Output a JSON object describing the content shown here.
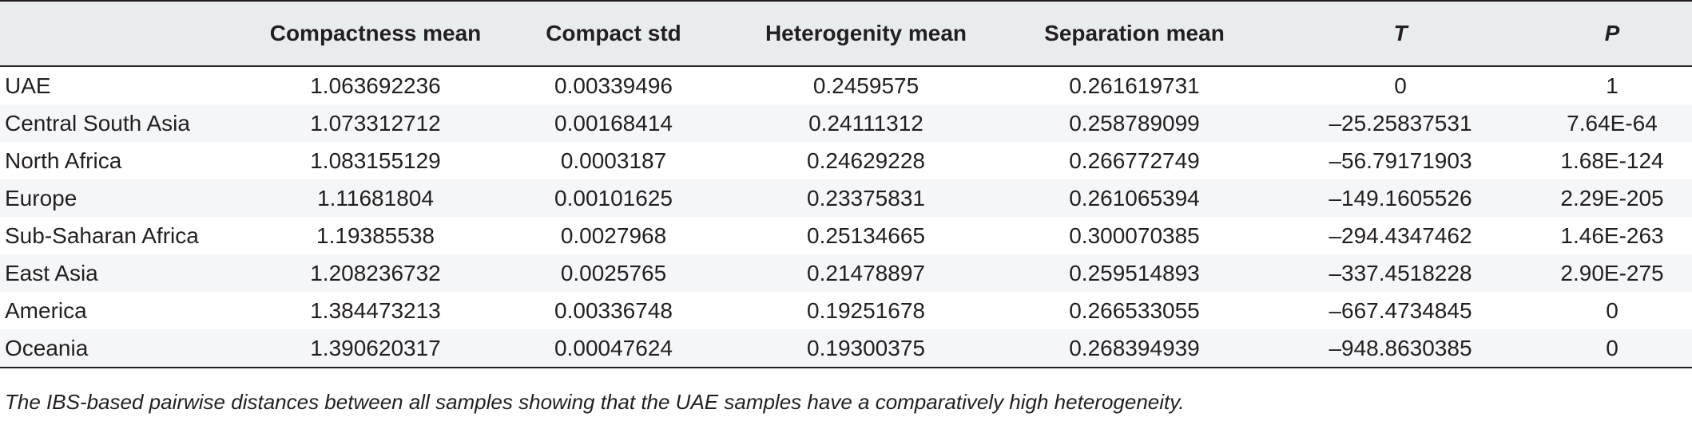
{
  "table": {
    "columns": [
      {
        "label": "",
        "italic": false
      },
      {
        "label": "Compactness mean",
        "italic": false
      },
      {
        "label": "Compact std",
        "italic": false
      },
      {
        "label": "Heterogenity mean",
        "italic": false
      },
      {
        "label": "Separation mean",
        "italic": false
      },
      {
        "label": "T",
        "italic": true
      },
      {
        "label": "P",
        "italic": true
      }
    ],
    "rows": [
      [
        "UAE",
        "1.063692236",
        "0.00339496",
        "0.2459575",
        "0.261619731",
        "0",
        "1"
      ],
      [
        "Central South Asia",
        "1.073312712",
        "0.00168414",
        "0.24111312",
        "0.258789099",
        "–25.25837531",
        "7.64E-64"
      ],
      [
        "North Africa",
        "1.083155129",
        "0.0003187",
        "0.24629228",
        "0.266772749",
        "–56.79171903",
        "1.68E-124"
      ],
      [
        "Europe",
        "1.11681804",
        "0.00101625",
        "0.23375831",
        "0.261065394",
        "–149.1605526",
        "2.29E-205"
      ],
      [
        "Sub-Saharan Africa",
        "1.19385538",
        "0.0027968",
        "0.25134665",
        "0.300070385",
        "–294.4347462",
        "1.46E-263"
      ],
      [
        "East Asia",
        "1.208236732",
        "0.0025765",
        "0.21478897",
        "0.259514893",
        "–337.4518228",
        "2.90E-275"
      ],
      [
        "America",
        "1.384473213",
        "0.00336748",
        "0.19251678",
        "0.266533055",
        "–667.4734845",
        "0"
      ],
      [
        "Oceania",
        "1.390620317",
        "0.00047624",
        "0.19300375",
        "0.268394939",
        "–948.8630385",
        "0"
      ]
    ]
  },
  "caption": "The IBS-based pairwise distances between all samples showing that the UAE samples have a comparatively high heterogeneity."
}
